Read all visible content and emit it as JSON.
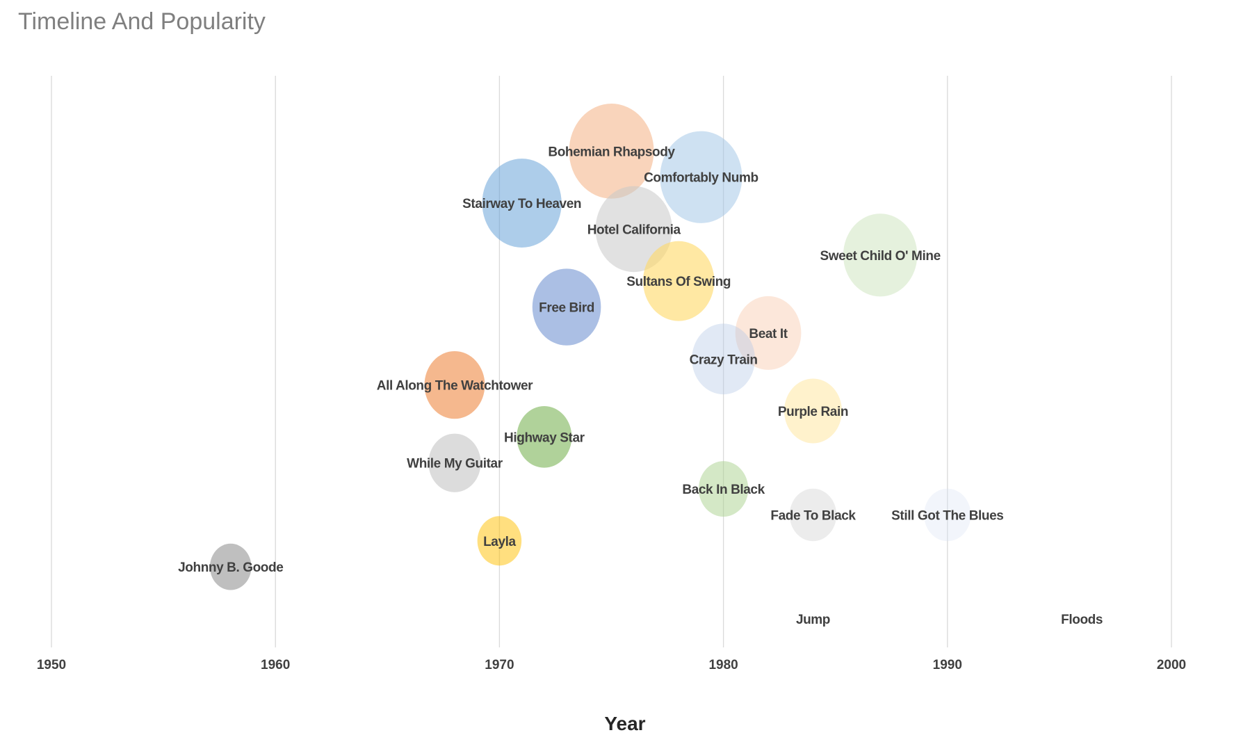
{
  "chart_data": {
    "type": "bubble",
    "title": "Timeline And Popularity",
    "xlabel": "Year",
    "ylabel": "",
    "xlim": [
      1950,
      2000
    ],
    "ylim": [
      0.9,
      22.9
    ],
    "xticks": [
      "1950",
      "1960",
      "1970",
      "1980",
      "1990",
      "2000"
    ],
    "xtick_values": [
      1950,
      1960,
      1970,
      1980,
      1990,
      2000
    ],
    "grid": "vertical",
    "points": [
      {
        "label": "Bohemian Rhapsody",
        "x": 1975,
        "y": 20,
        "size": 20,
        "color": "#f4b183",
        "opacity": 0.55
      },
      {
        "label": "Comfortably Numb",
        "x": 1979,
        "y": 19,
        "size": 19,
        "color": "#9dc3e6",
        "opacity": 0.5
      },
      {
        "label": "Stairway To Heaven",
        "x": 1971,
        "y": 18,
        "size": 18,
        "color": "#5b9bd5",
        "opacity": 0.5
      },
      {
        "label": "Hotel California",
        "x": 1976,
        "y": 17,
        "size": 17,
        "color": "#c9c9c9",
        "opacity": 0.55
      },
      {
        "label": "Sweet Child O' Mine",
        "x": 1987,
        "y": 16,
        "size": 16,
        "color": "#a9d18e",
        "opacity": 0.3
      },
      {
        "label": "Sultans Of Swing",
        "x": 1978,
        "y": 15,
        "size": 15,
        "color": "#ffd966",
        "opacity": 0.6
      },
      {
        "label": "Free Bird",
        "x": 1973,
        "y": 14,
        "size": 14,
        "color": "#4472c4",
        "opacity": 0.45
      },
      {
        "label": "Beat It",
        "x": 1982,
        "y": 13,
        "size": 13,
        "color": "#f4b183",
        "opacity": 0.3
      },
      {
        "label": "Crazy Train",
        "x": 1980,
        "y": 12,
        "size": 12,
        "color": "#b4c7e7",
        "opacity": 0.4
      },
      {
        "label": "All Along The Watchtower",
        "x": 1968,
        "y": 11,
        "size": 11,
        "color": "#ed7d31",
        "opacity": 0.55
      },
      {
        "label": "Purple Rain",
        "x": 1984,
        "y": 10,
        "size": 10,
        "color": "#ffe699",
        "opacity": 0.5
      },
      {
        "label": "Highway Star",
        "x": 1972,
        "y": 9,
        "size": 9,
        "color": "#70ad47",
        "opacity": 0.55
      },
      {
        "label": "While My Guitar",
        "x": 1968,
        "y": 8,
        "size": 8,
        "color": "#bfbfbf",
        "opacity": 0.55
      },
      {
        "label": "Back In Black",
        "x": 1980,
        "y": 7,
        "size": 7,
        "color": "#a9d18e",
        "opacity": 0.5
      },
      {
        "label": "Fade To Black",
        "x": 1984,
        "y": 6,
        "size": 6,
        "color": "#d9d9d9",
        "opacity": 0.5
      },
      {
        "label": "Still Got The Blues",
        "x": 1990,
        "y": 6,
        "size": 6,
        "color": "#dae3f3",
        "opacity": 0.35
      },
      {
        "label": "Layla",
        "x": 1970,
        "y": 5,
        "size": 5,
        "color": "#ffc000",
        "opacity": 0.5
      },
      {
        "label": "Johnny B. Goode",
        "x": 1958,
        "y": 4,
        "size": 4,
        "color": "#7f7f7f",
        "opacity": 0.5
      },
      {
        "label": "Jump",
        "x": 1984,
        "y": 2,
        "size": 2,
        "color": "#ffffff",
        "opacity": 0.2
      },
      {
        "label": "Floods",
        "x": 1996,
        "y": 2,
        "size": 2,
        "color": "#ffffff",
        "opacity": 0.2
      }
    ]
  }
}
